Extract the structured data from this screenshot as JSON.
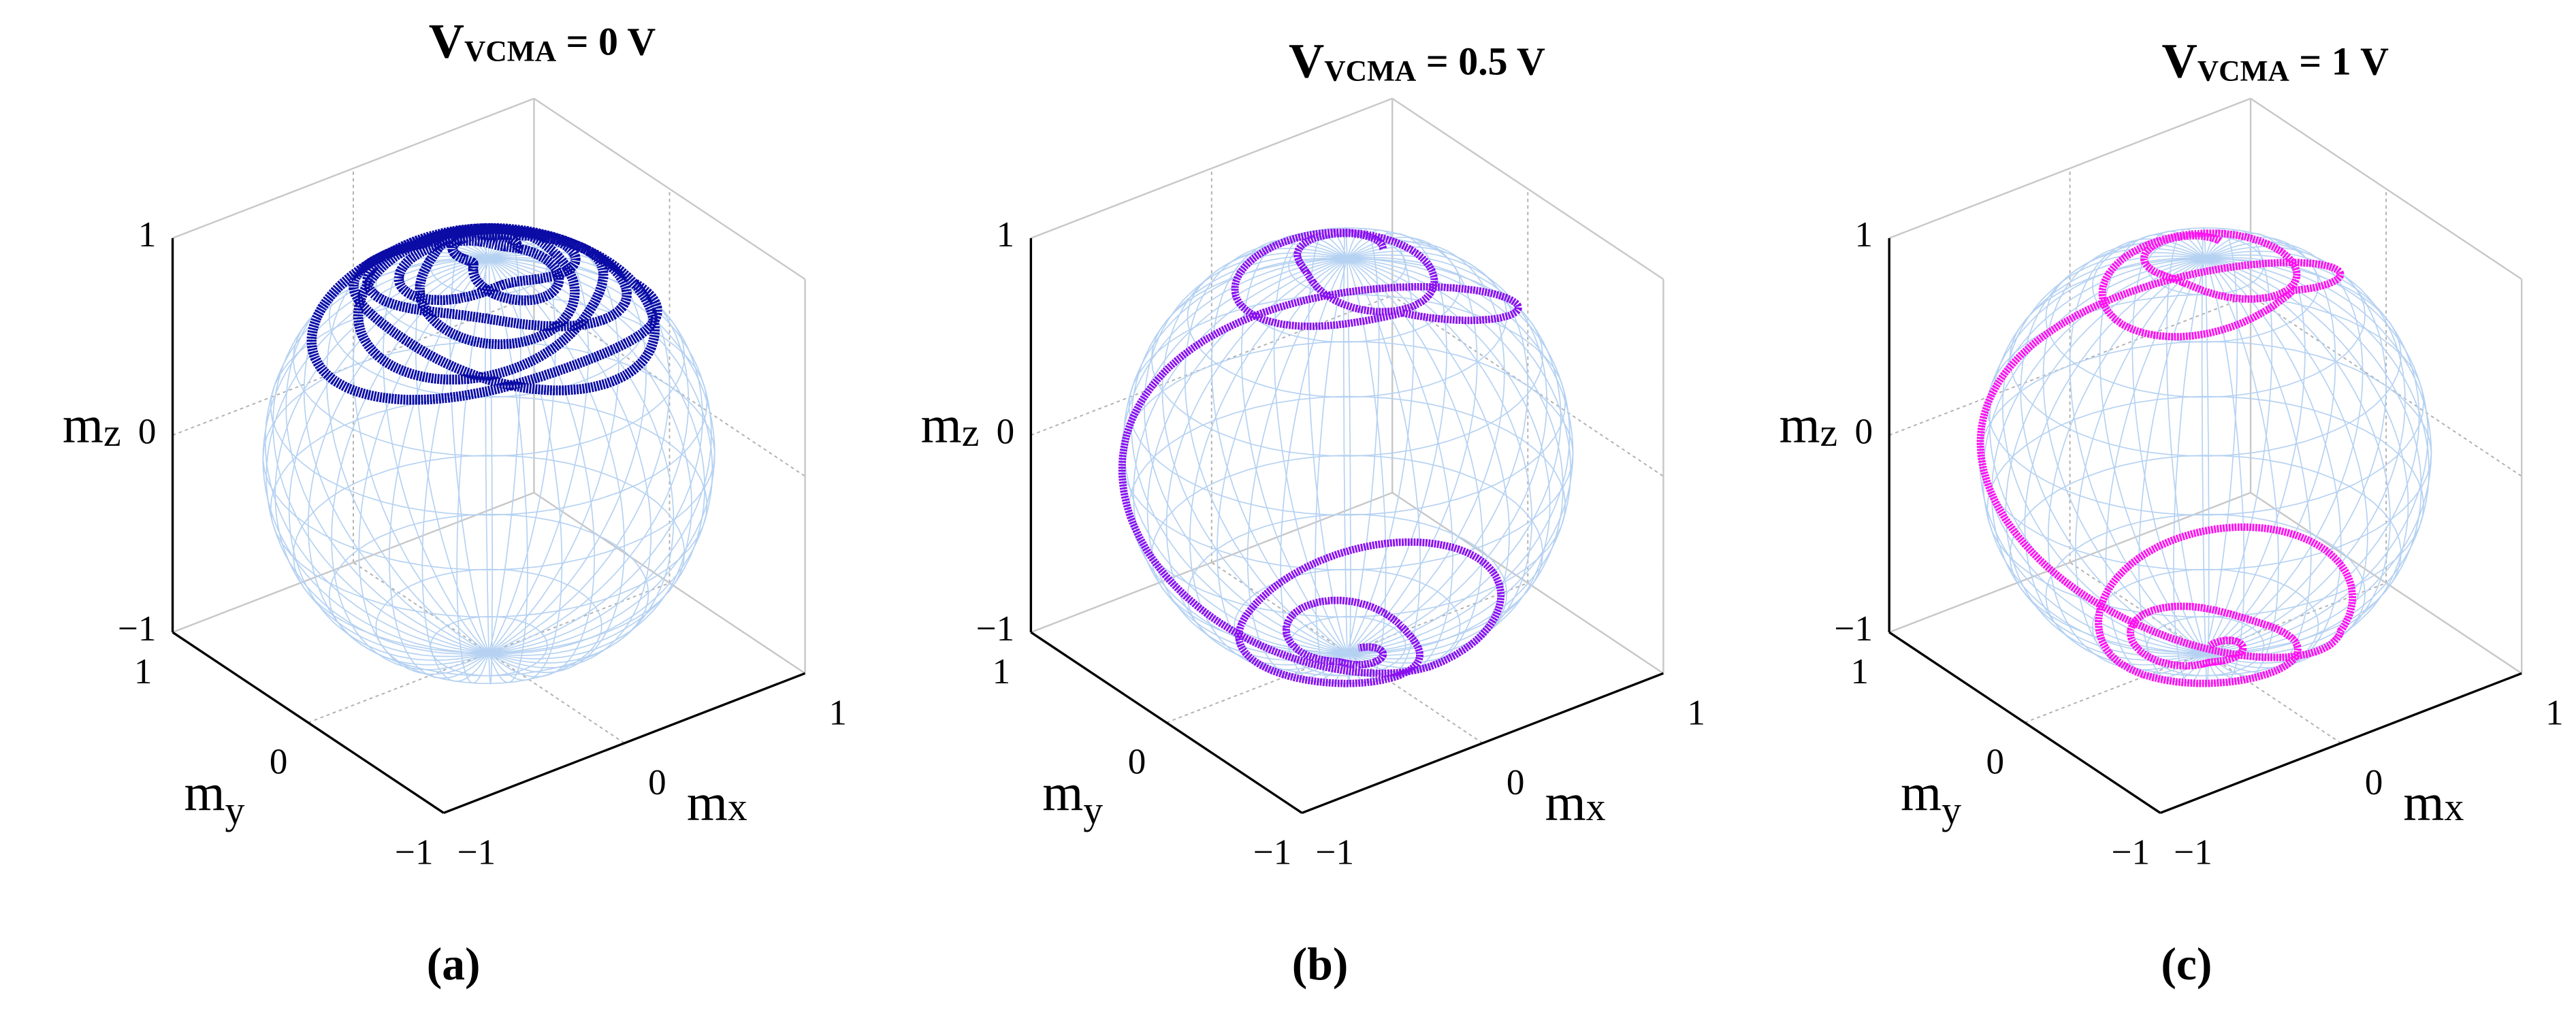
{
  "chart_data": [
    {
      "type": "sphere3d",
      "title": "V",
      "title_sub": "VCMA",
      "title_rest": "= 0 V",
      "color": "#0b0ba6",
      "xlabel": "m",
      "xlabel_sub": "x",
      "ylabel": "m",
      "ylabel_sub": "y",
      "zlabel": "m",
      "zlabel_sub": "z",
      "xlim": [
        -1,
        1
      ],
      "ylim": [
        -1,
        1
      ],
      "zlim": [
        -1,
        1
      ],
      "xticks": [
        {
          "value": -1,
          "label": "−1"
        },
        0,
        1
      ],
      "yticks": [
        {
          "value": -1,
          "label": "−1"
        },
        0,
        1
      ],
      "zticks": [
        {
          "value": -1,
          "label": "−1"
        },
        0,
        1
      ],
      "grid": true,
      "panel": "(a)"
    },
    {
      "type": "sphere3d",
      "title": "V",
      "title_sub": "VCMA",
      "title_rest": "= 0.5 V",
      "color": "#8a10f0",
      "xlabel": "m",
      "xlabel_sub": "x",
      "ylabel": "m",
      "ylabel_sub": "y",
      "zlabel": "m",
      "zlabel_sub": "z",
      "xlim": [
        -1,
        1
      ],
      "ylim": [
        -1,
        1
      ],
      "zlim": [
        -1,
        1
      ],
      "xticks": [
        {
          "value": -1,
          "label": "−1"
        },
        0,
        1
      ],
      "yticks": [
        {
          "value": -1,
          "label": "−1"
        },
        0,
        1
      ],
      "zticks": [
        {
          "value": -1,
          "label": "−1"
        },
        0,
        1
      ],
      "grid": true,
      "panel": "(b)"
    },
    {
      "type": "sphere3d",
      "title": "V",
      "title_sub": "VCMA",
      "title_rest": "= 1 V",
      "color": "#ff10f0",
      "xlabel": "m",
      "xlabel_sub": "x",
      "ylabel": "m",
      "ylabel_sub": "y",
      "zlabel": "m",
      "zlabel_sub": "z",
      "xlim": [
        -1,
        1
      ],
      "ylim": [
        -1,
        1
      ],
      "zlim": [
        -1,
        1
      ],
      "xticks": [
        {
          "value": -1,
          "label": "−1"
        },
        0,
        1
      ],
      "yticks": [
        {
          "value": -1,
          "label": "−1"
        },
        0,
        1
      ],
      "zticks": [
        {
          "value": -1,
          "label": "−1"
        },
        0,
        1
      ],
      "grid": true,
      "panel": "(c)"
    }
  ]
}
